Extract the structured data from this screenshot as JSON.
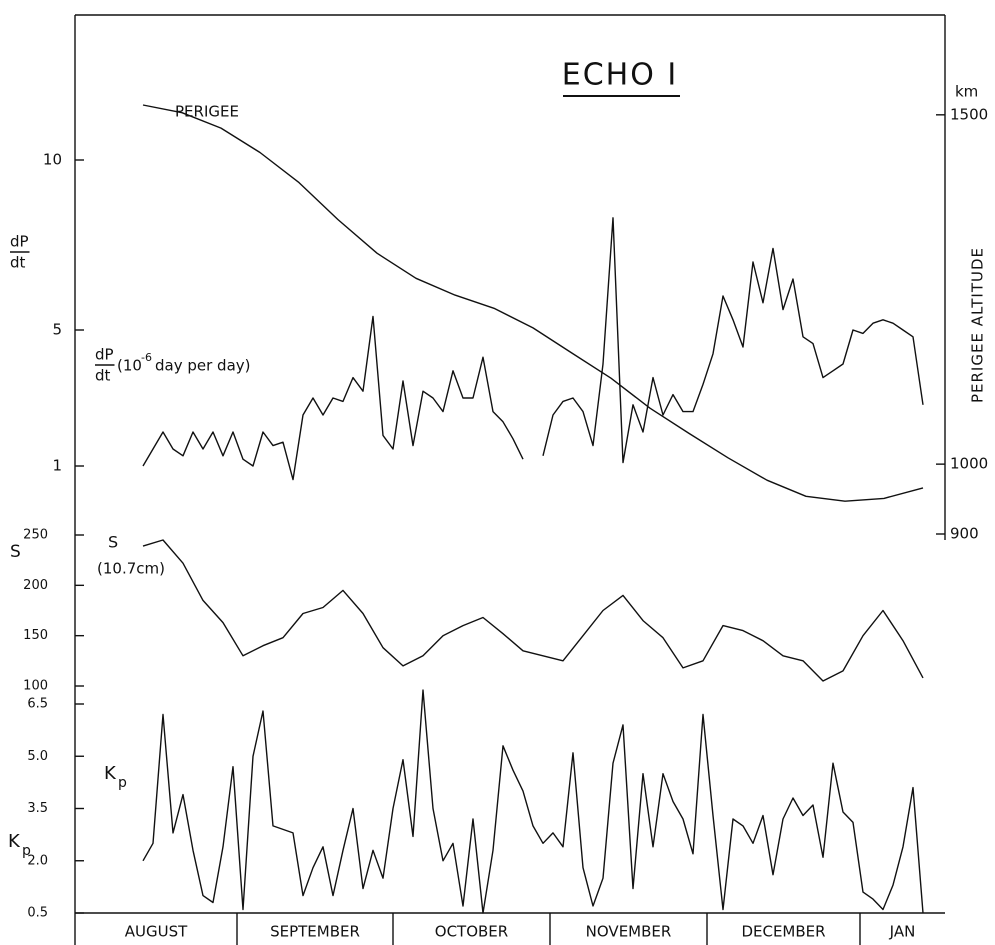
{
  "title": "ECHO I",
  "x_axis": {
    "months": [
      "AUGUST",
      "SEPTEMBER",
      "OCTOBER",
      "NOVEMBER",
      "DECEMBER",
      "JAN"
    ]
  },
  "chart_data": [
    {
      "type": "line",
      "y_label": {
        "numerator": "dP",
        "denominator": "dt"
      },
      "ylim": [
        -1,
        14
      ],
      "yticks": [
        1,
        5,
        10
      ],
      "y2lim": [
        900,
        1630
      ],
      "y2ticks": [
        900,
        1000,
        1500
      ],
      "y2_unit": "km",
      "y2_label": "PERIGEE ALTITUDE",
      "annotations": [
        {
          "text": "PERIGEE"
        },
        {
          "numerator": "dP",
          "denominator": "dt",
          "text": "(10",
          "superscript": "-6",
          "text_after": "day per day)"
        }
      ],
      "series": [
        {
          "color": "#111111",
          "values": [
            1.0,
            1.5,
            2.0,
            1.5,
            1.3,
            2.0,
            1.5,
            2.0,
            1.3,
            2.0,
            1.2,
            1.0,
            2.0,
            1.6,
            1.7,
            0.6,
            2.5,
            3.0,
            2.5,
            3.0,
            2.9,
            3.6,
            3.2,
            5.4,
            1.9,
            1.5,
            3.5,
            1.6,
            3.2,
            3.0,
            2.6,
            3.8,
            3.0,
            3.0,
            4.2,
            2.6,
            2.3,
            1.8,
            1.2,
            null,
            1.3,
            2.5,
            2.9,
            3.0,
            2.6,
            1.6,
            4.0,
            8.3,
            1.1,
            2.8,
            2.0,
            3.6,
            2.5,
            3.1,
            2.6,
            2.6,
            3.4,
            4.3,
            6.0,
            5.3,
            4.5,
            7.0,
            5.8,
            7.4,
            5.6,
            6.5,
            4.8,
            4.6,
            3.6,
            3.8,
            4.0,
            5.0,
            4.9,
            5.2,
            5.3,
            5.2,
            5.0,
            4.8,
            2.8
          ]
        },
        {
          "axis": "y2",
          "color": "#111111",
          "values": [
            1514,
            1503,
            1481,
            1446,
            1403,
            1350,
            1302,
            1266,
            1242,
            1223,
            1195,
            1159,
            1123,
            1080,
            1044,
            1009,
            977,
            954,
            947,
            951,
            966
          ]
        }
      ]
    },
    {
      "type": "line",
      "y_label": "S",
      "annotation": {
        "lines": [
          "S",
          "(10.7cm)"
        ]
      },
      "ylim": [
        100,
        250
      ],
      "yticks": [
        100,
        150,
        200,
        250
      ],
      "series": [
        {
          "color": "#111111",
          "values": [
            239,
            245,
            222,
            185,
            163,
            130,
            140,
            148,
            172,
            178,
            195,
            172,
            138,
            120,
            130,
            150,
            160,
            168,
            152,
            135,
            130,
            125,
            150,
            175,
            190,
            165,
            148,
            118,
            125,
            160,
            155,
            145,
            130,
            125,
            105,
            115,
            150,
            175,
            145,
            108
          ]
        }
      ]
    },
    {
      "type": "line",
      "y_label": {
        "base": "K",
        "subscript": "p"
      },
      "annotation": {
        "base": "K",
        "subscript": "p"
      },
      "ylim": [
        0.5,
        6.5
      ],
      "yticks": [
        0.5,
        {
          "value": 2,
          "label": "2.0"
        },
        3.5,
        {
          "value": 5,
          "label": "5.0"
        },
        6.5
      ],
      "series": [
        {
          "color": "#111111",
          "values": [
            2.0,
            2.5,
            6.2,
            2.8,
            3.9,
            2.3,
            1.0,
            0.8,
            2.4,
            4.7,
            0.6,
            5.0,
            6.3,
            3.0,
            2.9,
            2.8,
            1.0,
            1.8,
            2.4,
            1.0,
            2.3,
            3.5,
            1.2,
            2.3,
            1.5,
            3.5,
            4.9,
            2.7,
            6.9,
            3.5,
            2.0,
            2.5,
            0.7,
            3.2,
            0.5,
            2.3,
            5.3,
            4.6,
            4.0,
            3.0,
            2.5,
            2.8,
            2.4,
            5.1,
            1.8,
            0.7,
            1.5,
            4.8,
            5.9,
            1.2,
            4.5,
            2.4,
            4.5,
            3.7,
            3.2,
            2.2,
            6.2,
            3.3,
            0.6,
            3.2,
            3.0,
            2.5,
            3.3,
            1.6,
            3.2,
            3.8,
            3.3,
            3.6,
            2.1,
            4.8,
            3.4,
            3.1,
            1.1,
            0.9,
            0.6,
            1.3,
            2.4,
            4.1,
            0.5
          ]
        }
      ]
    }
  ]
}
